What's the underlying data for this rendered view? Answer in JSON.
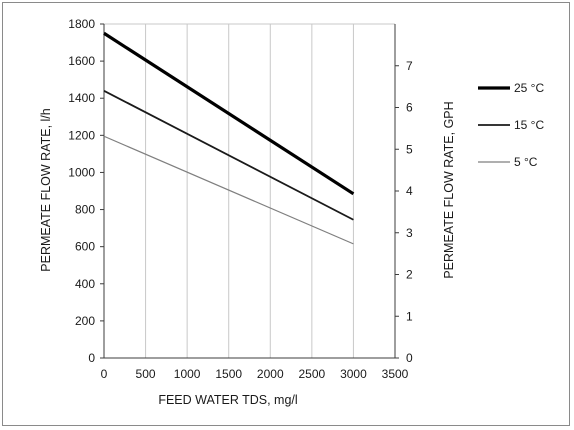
{
  "chart_data": {
    "type": "line",
    "title": "",
    "xlabel": "FEED WATER TDS, mg/l",
    "ylabel": "PERMEATE FLOW RATE, l/h",
    "y2label": "PERMEATE FLOW RATE, GPH",
    "xlim": [
      0,
      3500
    ],
    "ylim": [
      0,
      1800
    ],
    "y2lim": [
      0,
      8
    ],
    "x_ticks": [
      "0",
      "500",
      "1000",
      "1500",
      "2000",
      "2500",
      "3000",
      "3500"
    ],
    "y_ticks": [
      "0",
      "200",
      "400",
      "600",
      "800",
      "1000",
      "1200",
      "1400",
      "1600",
      "1800"
    ],
    "y2_ticks": [
      "0",
      "1",
      "2",
      "3",
      "4",
      "5",
      "6",
      "7"
    ],
    "grid": "vertical",
    "legend_position": "right",
    "series": [
      {
        "name": "25 °C",
        "x": [
          0,
          3000
        ],
        "values": [
          1750,
          885
        ],
        "color": "#000000",
        "weight": "thick"
      },
      {
        "name": "15 °C",
        "x": [
          0,
          3000
        ],
        "values": [
          1440,
          745
        ],
        "color": "#1a1a1a",
        "weight": "medium"
      },
      {
        "name": "5 °C",
        "x": [
          0,
          3000
        ],
        "values": [
          1195,
          615
        ],
        "color": "#7f7f7f",
        "weight": "thin"
      }
    ]
  }
}
